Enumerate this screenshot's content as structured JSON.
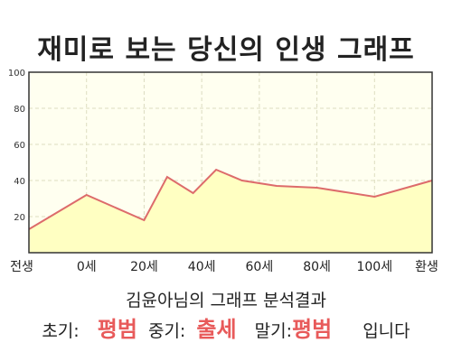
{
  "title": "재미로 보는 당신의 인생 그래프",
  "chart_data": {
    "type": "area",
    "title": "",
    "xlabel": "",
    "ylabel": "",
    "ylim": [
      0,
      100
    ],
    "yticks": [
      20,
      40,
      60,
      80,
      100
    ],
    "x_tick_labels": [
      "전생",
      "0세",
      "20세",
      "40세",
      "60세",
      "80세",
      "100세",
      "환생"
    ],
    "x_tick_positions": [
      -20,
      0,
      20,
      40,
      60,
      80,
      100,
      120
    ],
    "grid": true,
    "series": [
      {
        "x": [
          -20,
          0,
          20,
          28,
          37,
          45,
          54,
          66,
          80,
          100,
          120
        ],
        "y": [
          13,
          32,
          18,
          42,
          33,
          46,
          40,
          37,
          36,
          31,
          40
        ],
        "color": "#dd6b6b",
        "fill": "#ffffc2"
      }
    ]
  },
  "result": {
    "title": "김윤아님의 그래프 분석결과",
    "early_label": "초기:",
    "early_value": "평범",
    "mid_label": "중기:",
    "mid_value": "출세",
    "late_label": "말기:",
    "late_value": "평범",
    "ending": "입니다"
  },
  "colors": {
    "line": "#dd6b6b",
    "fill": "#ffffc2",
    "highlight": "#e85a5a",
    "grid": "#dcdcc0",
    "axis": "#333333"
  }
}
